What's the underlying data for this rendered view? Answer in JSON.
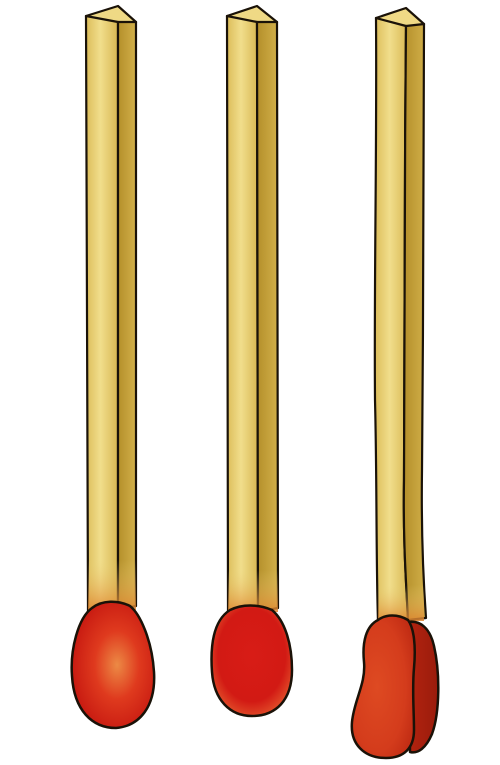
{
  "scene": {
    "background": "#ffffff",
    "matches": [
      {
        "id": "match-1",
        "head_shape": "rounded-bulb",
        "head_color": "#d8231a",
        "head_highlight": "#ea7a3a",
        "stick_color": "#e9d178",
        "stick_side_color": "#c9a53a"
      },
      {
        "id": "match-2",
        "head_shape": "rounded-small",
        "head_color": "#d61c16",
        "head_highlight": "#e8552d",
        "stick_color": "#e9d178",
        "stick_side_color": "#c9a53a"
      },
      {
        "id": "match-3",
        "head_shape": "teardrop",
        "head_color": "#d9431f",
        "head_highlight": "#e67a45",
        "stick_color": "#e9d178",
        "stick_side_color": "#c9a53a"
      }
    ],
    "outline_color": "#1a1208"
  }
}
